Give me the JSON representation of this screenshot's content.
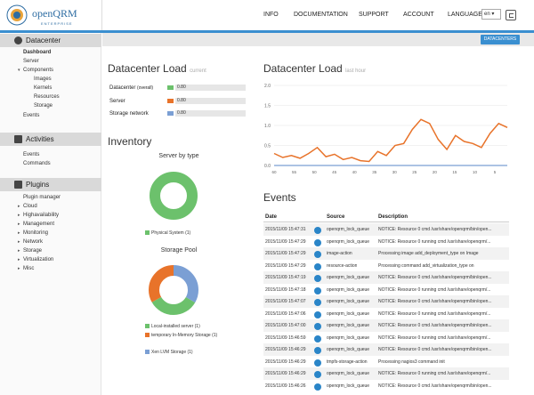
{
  "header": {
    "logo_text": "openQRM",
    "logo_sub": "ENTERPRISE",
    "nav": [
      "INFO",
      "DOCUMENTATION",
      "SUPPORT",
      "ACCOUNT"
    ],
    "language_label": "LANGUAGE",
    "language_value": "en"
  },
  "sidebar": {
    "sections": [
      {
        "title": "Datacenter",
        "icon": "datacenter-icon",
        "items": [
          "Dashboard",
          "Server",
          "Components",
          "Images",
          "Kernels",
          "Resources",
          "Storage",
          "Events"
        ]
      },
      {
        "title": "Activities",
        "icon": "activities-icon",
        "items": [
          "Events",
          "Commands"
        ]
      },
      {
        "title": "Plugins",
        "icon": "plugins-icon",
        "items": [
          "Plugin manager",
          "Cloud",
          "Highavailability",
          "Management",
          "Monitoring",
          "Network",
          "Storage",
          "Virtualization",
          "Misc"
        ]
      }
    ]
  },
  "toolbar": {
    "datacenters_button": "DATACENTERS"
  },
  "datacenter_load": {
    "title": "Datacenter Load",
    "subtitle": "current",
    "rows": [
      {
        "label": "Datacenter",
        "sublabel": "(overall)",
        "value": "0.80",
        "color": "#6cc16c"
      },
      {
        "label": "Server",
        "sublabel": "",
        "value": "0.80",
        "color": "#e8732a"
      },
      {
        "label": "Storage network",
        "sublabel": "",
        "value": "0.80",
        "color": "#7b9fd4"
      }
    ]
  },
  "inventory": {
    "title": "Inventory",
    "server_by_type": {
      "title": "Server by type",
      "legend": [
        "Physical System (1)"
      ],
      "colors": [
        "#6cc16c"
      ]
    },
    "storage_pool": {
      "title": "Storage Pool",
      "legend": [
        "Local-installed server (1)",
        "temporary In-Memory Storage (1)",
        "Xen LVM Storage (1)"
      ],
      "colors": [
        "#6cc16c",
        "#e8732a",
        "#7b9fd4"
      ]
    }
  },
  "datacenter_load_last_hour": {
    "title": "Datacenter Load",
    "subtitle": "last hour"
  },
  "chart_data": {
    "type": "line",
    "x": [
      60,
      58,
      56,
      54,
      52,
      50,
      48,
      46,
      44,
      42,
      40,
      38,
      36,
      34,
      32,
      30,
      28,
      26,
      24,
      22,
      20,
      18,
      16,
      14,
      12,
      10,
      8,
      6
    ],
    "xtick_labels": [
      "60",
      "55",
      "50",
      "45",
      "40",
      "35",
      "30",
      "25",
      "20",
      "15",
      "10",
      "5"
    ],
    "ylim": [
      0,
      2.0
    ],
    "yticks": [
      "0.0",
      "0.5",
      "1.0",
      "1.5",
      "2.0"
    ],
    "grid": true,
    "series": [
      {
        "color": "#e8732a",
        "values": [
          0.3,
          0.2,
          0.25,
          0.18,
          0.3,
          0.45,
          0.22,
          0.28,
          0.15,
          0.2,
          0.12,
          0.1,
          0.35,
          0.25,
          0.5,
          0.55,
          0.9,
          1.15,
          1.05,
          0.65,
          0.4,
          0.75,
          0.6,
          0.55,
          0.45,
          0.8,
          1.05,
          0.95
        ]
      },
      {
        "color": "#7b9fd4",
        "values": [
          0.0,
          0.0,
          0.0,
          0.0,
          0.0,
          0.0,
          0.0,
          0.0,
          0.0,
          0.0,
          0.0,
          0.0,
          0.0,
          0.0,
          0.0,
          0.0,
          0.0,
          0.0,
          0.0,
          0.0,
          0.0,
          0.0,
          0.0,
          0.0,
          0.0,
          0.0,
          0.0,
          0.0
        ]
      }
    ]
  },
  "events": {
    "title": "Events",
    "columns": [
      "Date",
      "Source",
      "Description"
    ],
    "rows": [
      [
        "2015/11/09 15:47:31",
        "openqrm_lock_queue",
        "NOTICE: Resource 0 cmd /usr/share/openqrm/bin/open..."
      ],
      [
        "2015/11/09 15:47:29",
        "openqrm_lock_queue",
        "NOTICE: Resource 0 running cmd /usr/share/openqrm/..."
      ],
      [
        "2015/11/09 15:47:29",
        "image-action",
        "Processing image add_deployment_type on Image"
      ],
      [
        "2015/11/09 15:47:29",
        "resource-action",
        "Processing command add_virtualization_type on"
      ],
      [
        "2015/11/09 15:47:19",
        "openqrm_lock_queue",
        "NOTICE: Resource 0 cmd /usr/share/openqrm/bin/open..."
      ],
      [
        "2015/11/09 15:47:18",
        "openqrm_lock_queue",
        "NOTICE: Resource 0 running cmd /usr/share/openqrm/..."
      ],
      [
        "2015/11/09 15:47:07",
        "openqrm_lock_queue",
        "NOTICE: Resource 0 cmd /usr/share/openqrm/bin/open..."
      ],
      [
        "2015/11/09 15:47:06",
        "openqrm_lock_queue",
        "NOTICE: Resource 0 running cmd /usr/share/openqrm/..."
      ],
      [
        "2015/11/09 15:47:00",
        "openqrm_lock_queue",
        "NOTICE: Resource 0 cmd /usr/share/openqrm/bin/open..."
      ],
      [
        "2015/11/09 15:46:59",
        "openqrm_lock_queue",
        "NOTICE: Resource 0 running cmd /usr/share/openqrm/..."
      ],
      [
        "2015/11/09 15:46:29",
        "openqrm_lock_queue",
        "NOTICE: Resource 0 cmd /usr/share/openqrm/bin/open..."
      ],
      [
        "2015/11/09 15:46:29",
        "tmpfs-storage-action",
        "Processing nagios3 command init"
      ],
      [
        "2015/11/09 15:46:29",
        "openqrm_lock_queue",
        "NOTICE: Resource 0 running cmd /usr/share/openqrm/..."
      ],
      [
        "2015/11/09 15:46:26",
        "openqrm_lock_queue",
        "NOTICE: Resource 0 cmd /usr/share/openqrm/bin/open..."
      ]
    ]
  }
}
